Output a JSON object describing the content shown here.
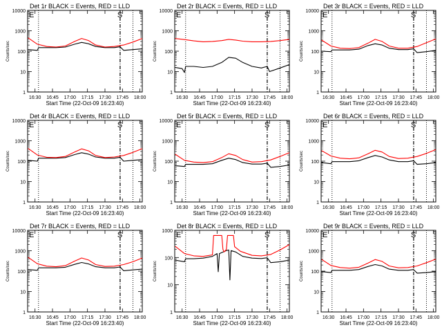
{
  "chart_data": [
    {
      "type": "line",
      "title": "Det 1r BLACK = Events, RED = LLD",
      "xlabel": "Start Time (22-Oct-09 16:23:40)",
      "ylabel": "Counts/sec",
      "xlim": [
        "16:23:40",
        "18:02"
      ],
      "ylim": [
        1,
        10000
      ],
      "yscale": "log",
      "xticks": [
        "16:30",
        "16:45",
        "17:00",
        "17:15",
        "17:30",
        "17:45",
        "18:00"
      ],
      "yticks": [
        "1",
        "10",
        "100",
        "1000",
        "10000"
      ],
      "markers": [
        "E",
        "S"
      ],
      "vlines": {
        "dotted": [
          "16:33",
          "17:54"
        ],
        "dashed": [
          "17:43"
        ]
      },
      "series": [
        {
          "color": "#ff0000",
          "x": [
            "16:24",
            "16:32",
            "16:40",
            "16:48",
            "16:56",
            "17:04",
            "17:10",
            "17:16",
            "17:22",
            "17:30",
            "17:38",
            "17:46",
            "17:54",
            "18:02"
          ],
          "values": [
            450,
            220,
            170,
            160,
            180,
            300,
            420,
            330,
            200,
            160,
            170,
            200,
            280,
            420
          ]
        },
        {
          "color": "#000000",
          "x": [
            "16:24",
            "16:32",
            "16:33",
            "16:40",
            "16:48",
            "16:56",
            "17:04",
            "17:10",
            "17:16",
            "17:22",
            "17:30",
            "17:38",
            "17:43",
            "17:46",
            "17:54",
            "18:02"
          ],
          "values": [
            120,
            110,
            150,
            150,
            150,
            160,
            220,
            270,
            230,
            170,
            150,
            150,
            165,
            110,
            120,
            130
          ]
        }
      ]
    },
    {
      "type": "line",
      "title": "Det 2r BLACK = Events, RED = LLD",
      "xlabel": "Start Time (22-Oct-09 16:23:40)",
      "ylabel": "Counts/sec",
      "xlim": [
        "16:23:40",
        "18:02"
      ],
      "ylim": [
        1,
        10000
      ],
      "yscale": "log",
      "xticks": [
        "16:30",
        "16:45",
        "17:00",
        "17:15",
        "17:30",
        "17:45",
        "18:00"
      ],
      "yticks": [
        "1",
        "10",
        "100",
        "1000",
        "10000"
      ],
      "markers": [
        "E",
        "S"
      ],
      "vlines": {
        "dotted": [
          "16:33",
          "17:54"
        ],
        "dashed": [
          "17:43"
        ]
      },
      "series": [
        {
          "color": "#ff0000",
          "x": [
            "16:24",
            "16:32",
            "16:40",
            "16:48",
            "16:56",
            "17:04",
            "17:10",
            "17:16",
            "17:22",
            "17:30",
            "17:38",
            "17:46",
            "17:54",
            "18:02"
          ],
          "values": [
            420,
            370,
            320,
            290,
            300,
            330,
            380,
            350,
            310,
            290,
            290,
            300,
            330,
            380
          ]
        },
        {
          "color": "#000000",
          "x": [
            "16:24",
            "16:30",
            "16:32",
            "16:33",
            "16:40",
            "16:48",
            "16:56",
            "17:04",
            "17:10",
            "17:16",
            "17:22",
            "17:30",
            "17:38",
            "17:43",
            "17:45",
            "17:54",
            "18:02"
          ],
          "values": [
            16,
            14,
            9,
            18,
            18,
            16,
            18,
            28,
            50,
            45,
            28,
            18,
            15,
            18,
            10,
            15,
            22
          ]
        }
      ]
    },
    {
      "type": "line",
      "title": "Det 3r BLACK = Events, RED = LLD",
      "xlabel": "Start Time (22-Oct-09 16:23:40)",
      "ylabel": "Counts/sec",
      "xlim": [
        "16:23:40",
        "18:02"
      ],
      "ylim": [
        1,
        10000
      ],
      "yscale": "log",
      "xticks": [
        "16:30",
        "16:45",
        "17:00",
        "17:15",
        "17:30",
        "17:45",
        "18:00"
      ],
      "yticks": [
        "1",
        "10",
        "100",
        "1000",
        "10000"
      ],
      "markers": [
        "E",
        "S"
      ],
      "vlines": {
        "dotted": [
          "16:33",
          "17:54"
        ],
        "dashed": [
          "17:43"
        ]
      },
      "series": [
        {
          "color": "#ff0000",
          "x": [
            "16:24",
            "16:32",
            "16:40",
            "16:48",
            "16:56",
            "17:04",
            "17:10",
            "17:16",
            "17:22",
            "17:30",
            "17:38",
            "17:46",
            "17:54",
            "18:02"
          ],
          "values": [
            350,
            180,
            140,
            135,
            150,
            250,
            380,
            300,
            180,
            140,
            140,
            170,
            260,
            400
          ]
        },
        {
          "color": "#000000",
          "x": [
            "16:24",
            "16:32",
            "16:33",
            "16:40",
            "16:48",
            "16:56",
            "17:04",
            "17:10",
            "17:16",
            "17:22",
            "17:30",
            "17:38",
            "17:43",
            "17:46",
            "17:54",
            "18:02"
          ],
          "values": [
            100,
            95,
            115,
            115,
            115,
            125,
            190,
            230,
            200,
            140,
            120,
            120,
            130,
            85,
            95,
            110
          ]
        }
      ]
    },
    {
      "type": "line",
      "title": "Det 4r BLACK = Events, RED = LLD",
      "xlabel": "Start Time (22-Oct-09 16:23:40)",
      "ylabel": "Counts/sec",
      "xlim": [
        "16:23:40",
        "18:02"
      ],
      "ylim": [
        1,
        10000
      ],
      "yscale": "log",
      "xticks": [
        "16:30",
        "16:45",
        "17:00",
        "17:15",
        "17:30",
        "17:45",
        "18:00"
      ],
      "yticks": [
        "1",
        "10",
        "100",
        "1000",
        "10000"
      ],
      "markers": [
        "E",
        "S"
      ],
      "vlines": {
        "dotted": [
          "16:33",
          "17:54"
        ],
        "dashed": [
          "17:43"
        ]
      },
      "series": [
        {
          "color": "#ff0000",
          "x": [
            "16:24",
            "16:32",
            "16:40",
            "16:48",
            "16:56",
            "17:04",
            "17:10",
            "17:16",
            "17:22",
            "17:30",
            "17:38",
            "17:46",
            "17:54",
            "18:02"
          ],
          "values": [
            420,
            200,
            155,
            150,
            170,
            280,
            400,
            320,
            190,
            150,
            160,
            190,
            270,
            410
          ]
        },
        {
          "color": "#000000",
          "x": [
            "16:24",
            "16:32",
            "16:33",
            "16:40",
            "16:48",
            "16:56",
            "17:04",
            "17:10",
            "17:16",
            "17:22",
            "17:30",
            "17:38",
            "17:43",
            "17:46",
            "17:54",
            "18:02"
          ],
          "values": [
            110,
            100,
            140,
            140,
            140,
            150,
            210,
            260,
            220,
            160,
            140,
            140,
            155,
            100,
            110,
            120
          ]
        }
      ]
    },
    {
      "type": "line",
      "title": "Det 5r BLACK = Events, RED = LLD",
      "xlabel": "Start Time (22-Oct-09 16:23:40)",
      "ylabel": "Counts/sec",
      "xlim": [
        "16:23:40",
        "18:02"
      ],
      "ylim": [
        1,
        10000
      ],
      "yscale": "log",
      "xticks": [
        "16:30",
        "16:45",
        "17:00",
        "17:15",
        "17:30",
        "17:45",
        "18:00"
      ],
      "yticks": [
        "1",
        "10",
        "100",
        "1000",
        "10000"
      ],
      "markers": [
        "E",
        "S"
      ],
      "vlines": {
        "dotted": [
          "16:33",
          "17:54"
        ],
        "dashed": [
          "17:43"
        ]
      },
      "series": [
        {
          "color": "#ff0000",
          "x": [
            "16:24",
            "16:32",
            "16:40",
            "16:48",
            "16:56",
            "17:04",
            "17:10",
            "17:16",
            "17:22",
            "17:30",
            "17:38",
            "17:46",
            "17:54",
            "18:02"
          ],
          "values": [
            220,
            110,
            90,
            85,
            95,
            150,
            230,
            190,
            120,
            90,
            95,
            115,
            170,
            260
          ]
        },
        {
          "color": "#000000",
          "x": [
            "16:24",
            "16:32",
            "16:33",
            "16:40",
            "16:48",
            "16:56",
            "17:04",
            "17:10",
            "17:16",
            "17:22",
            "17:30",
            "17:38",
            "17:43",
            "17:46",
            "17:54",
            "18:02"
          ],
          "values": [
            60,
            55,
            70,
            70,
            70,
            75,
            110,
            140,
            120,
            85,
            72,
            72,
            80,
            50,
            55,
            65
          ]
        }
      ]
    },
    {
      "type": "line",
      "title": "Det 6r BLACK = Events, RED = LLD",
      "xlabel": "Start Time (22-Oct-09 16:23:40)",
      "ylabel": "Counts/sec",
      "xlim": [
        "16:23:40",
        "18:02"
      ],
      "ylim": [
        1,
        10000
      ],
      "yscale": "log",
      "xticks": [
        "16:30",
        "16:45",
        "17:00",
        "17:15",
        "17:30",
        "17:45",
        "18:00"
      ],
      "yticks": [
        "1",
        "10",
        "100",
        "1000",
        "10000"
      ],
      "markers": [
        "E",
        "S"
      ],
      "vlines": {
        "dotted": [
          "16:33",
          "17:54"
        ],
        "dashed": [
          "17:43"
        ]
      },
      "series": [
        {
          "color": "#ff0000",
          "x": [
            "16:24",
            "16:32",
            "16:40",
            "16:48",
            "16:56",
            "17:04",
            "17:10",
            "17:16",
            "17:22",
            "17:30",
            "17:38",
            "17:46",
            "17:54",
            "18:02"
          ],
          "values": [
            330,
            180,
            140,
            130,
            145,
            230,
            340,
            280,
            170,
            135,
            140,
            170,
            240,
            370
          ]
        },
        {
          "color": "#000000",
          "x": [
            "16:24",
            "16:32",
            "16:33",
            "16:40",
            "16:48",
            "16:56",
            "17:04",
            "17:10",
            "17:16",
            "17:22",
            "17:30",
            "17:38",
            "17:43",
            "17:46",
            "17:54",
            "18:02"
          ],
          "values": [
            85,
            75,
            95,
            95,
            95,
            105,
            150,
            190,
            160,
            115,
            95,
            95,
            105,
            70,
            75,
            85
          ]
        }
      ]
    },
    {
      "type": "line",
      "title": "Det 7r BLACK = Events, RED = LLD",
      "xlabel": "Start Time (22-Oct-09 16:23:40)",
      "ylabel": "Counts/sec",
      "xlim": [
        "16:23:40",
        "18:02"
      ],
      "ylim": [
        1,
        10000
      ],
      "yscale": "log",
      "xticks": [
        "16:30",
        "16:45",
        "17:00",
        "17:15",
        "17:30",
        "17:45",
        "18:00"
      ],
      "yticks": [
        "1",
        "10",
        "100",
        "1000",
        "10000"
      ],
      "markers": [
        "E",
        "S"
      ],
      "vlines": {
        "dotted": [
          "16:33",
          "17:54"
        ],
        "dashed": [
          "17:43"
        ]
      },
      "series": [
        {
          "color": "#ff0000",
          "x": [
            "16:24",
            "16:32",
            "16:40",
            "16:48",
            "16:56",
            "17:04",
            "17:10",
            "17:16",
            "17:22",
            "17:30",
            "17:38",
            "17:46",
            "17:54",
            "18:02"
          ],
          "values": [
            480,
            230,
            175,
            165,
            185,
            310,
            440,
            350,
            210,
            170,
            175,
            210,
            290,
            440
          ]
        },
        {
          "color": "#000000",
          "x": [
            "16:24",
            "16:32",
            "16:33",
            "16:40",
            "16:48",
            "16:56",
            "17:04",
            "17:10",
            "17:16",
            "17:22",
            "17:30",
            "17:38",
            "17:43",
            "17:46",
            "17:54",
            "18:02"
          ],
          "values": [
            120,
            110,
            145,
            145,
            145,
            155,
            215,
            265,
            225,
            165,
            145,
            145,
            160,
            105,
            115,
            125
          ]
        }
      ]
    },
    {
      "type": "line",
      "title": "Det 8r BLACK = Events, RED = LLD",
      "xlabel": "Start Time (22-Oct-09 16:23:40)",
      "ylabel": "Counts/sec",
      "xlim": [
        "16:23:40",
        "18:02"
      ],
      "ylim": [
        1,
        1000
      ],
      "yscale": "log",
      "xticks": [
        "16:30",
        "16:45",
        "17:00",
        "17:15",
        "17:30",
        "17:45",
        "18:00"
      ],
      "yticks": [
        "1",
        "10",
        "100",
        "1000"
      ],
      "markers": [
        "E",
        "S"
      ],
      "vlines": {
        "dotted": [
          "16:33",
          "17:54"
        ],
        "dashed": [
          "17:43"
        ]
      },
      "series": [
        {
          "color": "#ff0000",
          "x": [
            "16:24",
            "16:32",
            "16:40",
            "16:48",
            "16:56",
            "16:57",
            "17:04",
            "17:05",
            "17:06",
            "17:08",
            "17:09",
            "17:14",
            "17:15",
            "17:20",
            "17:30",
            "17:38",
            "17:46",
            "17:54",
            "18:02"
          ],
          "values": [
            260,
            140,
            115,
            110,
            125,
            650,
            650,
            200,
            160,
            200,
            650,
            650,
            250,
            170,
            120,
            115,
            130,
            190,
            300
          ]
        },
        {
          "color": "#000000",
          "x": [
            "16:24",
            "16:32",
            "16:33",
            "16:40",
            "16:48",
            "16:56",
            "17:00",
            "17:01",
            "17:02",
            "17:08",
            "17:10",
            "17:11",
            "17:12",
            "17:16",
            "17:22",
            "17:30",
            "17:38",
            "17:43",
            "17:46",
            "17:54",
            "18:02"
          ],
          "values": [
            80,
            70,
            90,
            90,
            95,
            110,
            140,
            30,
            140,
            180,
            190,
            15,
            180,
            160,
            110,
            95,
            92,
            98,
            65,
            70,
            80
          ]
        }
      ]
    },
    {
      "type": "line",
      "title": "Det 9r BLACK = Events, RED = LLD",
      "xlabel": "Start Time (22-Oct-09 16:23:40)",
      "ylabel": "Counts/sec",
      "xlim": [
        "16:23:40",
        "18:02"
      ],
      "ylim": [
        1,
        10000
      ],
      "yscale": "log",
      "xticks": [
        "16:30",
        "16:45",
        "17:00",
        "17:15",
        "17:30",
        "17:45",
        "18:00"
      ],
      "yticks": [
        "1",
        "10",
        "100",
        "1000",
        "10000"
      ],
      "markers": [
        "E",
        "S"
      ],
      "vlines": {
        "dotted": [
          "16:33",
          "17:54"
        ],
        "dashed": [
          "17:43"
        ]
      },
      "series": [
        {
          "color": "#ff0000",
          "x": [
            "16:24",
            "16:32",
            "16:40",
            "16:48",
            "16:56",
            "17:04",
            "17:10",
            "17:16",
            "17:22",
            "17:30",
            "17:38",
            "17:46",
            "17:54",
            "18:02"
          ],
          "values": [
            380,
            190,
            150,
            140,
            155,
            250,
            370,
            300,
            180,
            145,
            150,
            180,
            260,
            390
          ]
        },
        {
          "color": "#000000",
          "x": [
            "16:24",
            "16:32",
            "16:33",
            "16:40",
            "16:48",
            "16:56",
            "17:04",
            "17:10",
            "17:16",
            "17:22",
            "17:30",
            "17:38",
            "17:43",
            "17:46",
            "17:54",
            "18:02"
          ],
          "values": [
            95,
            85,
            110,
            110,
            110,
            120,
            170,
            210,
            180,
            125,
            110,
            110,
            120,
            80,
            85,
            95
          ]
        }
      ]
    }
  ]
}
